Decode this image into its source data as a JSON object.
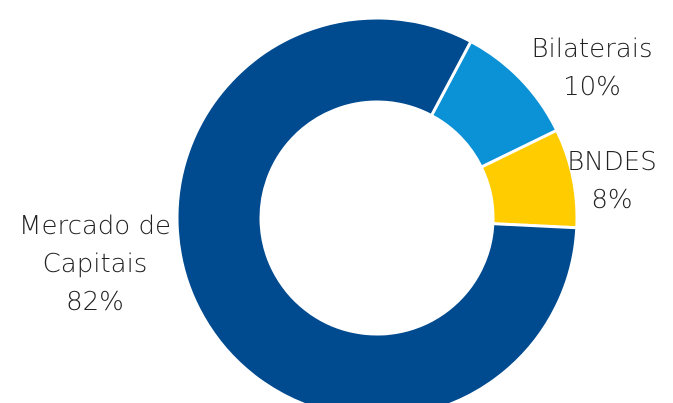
{
  "chart_data": {
    "type": "pie",
    "variant": "donut",
    "title": "",
    "slices": [
      {
        "label": [
          "Bilaterais"
        ],
        "value": 10,
        "value_label": "10%",
        "color": "#0b92d6"
      },
      {
        "label": [
          "BNDES"
        ],
        "value": 8,
        "value_label": "8%",
        "color": "#ffcc00"
      },
      {
        "label": [
          "Mercado de",
          "Capitais"
        ],
        "value": 82,
        "value_label": "82%",
        "color": "#004a8f"
      }
    ]
  }
}
